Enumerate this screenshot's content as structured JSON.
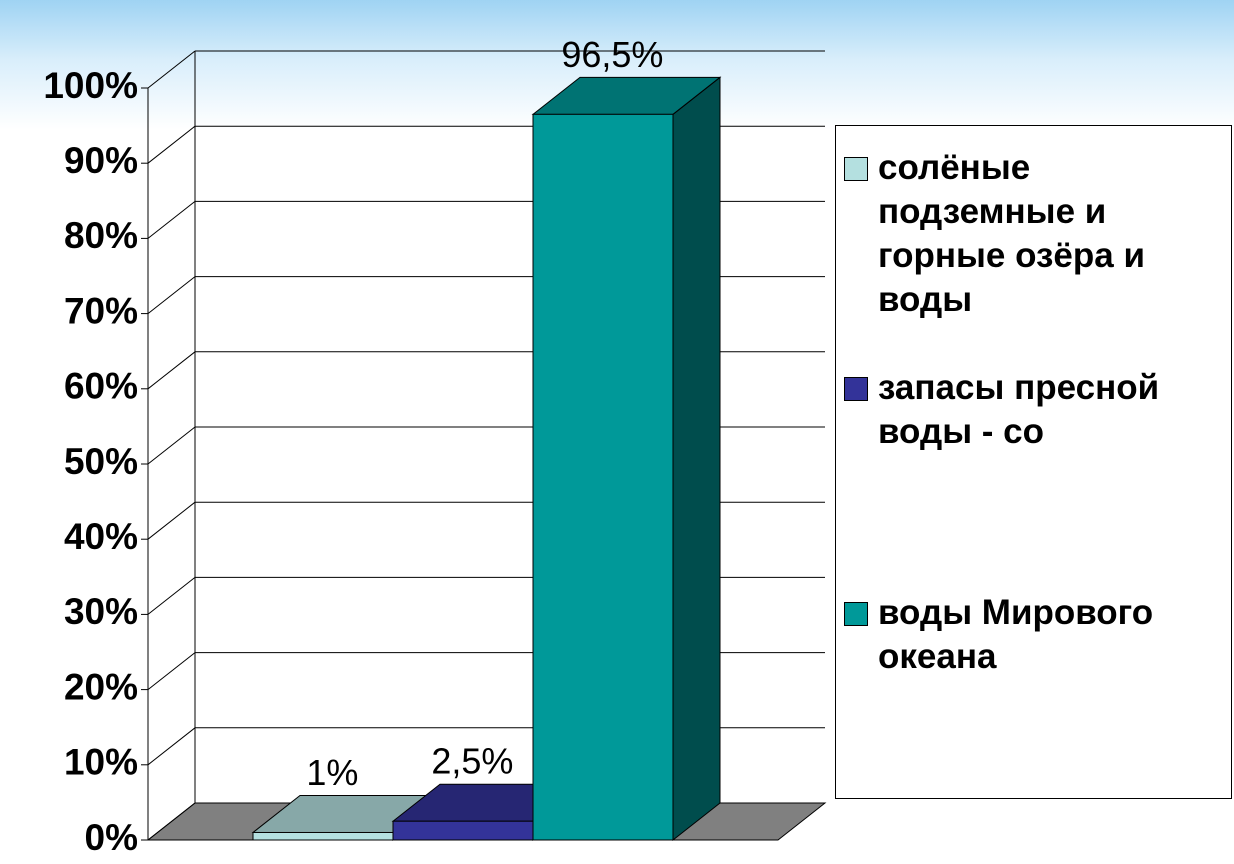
{
  "chart_data": {
    "type": "bar3d",
    "ylim": [
      0,
      100
    ],
    "yticks": [
      {
        "value": 0,
        "label": "0%"
      },
      {
        "value": 10,
        "label": "10%"
      },
      {
        "value": 20,
        "label": "20%"
      },
      {
        "value": 30,
        "label": "30%"
      },
      {
        "value": 40,
        "label": "40%"
      },
      {
        "value": 50,
        "label": "50%"
      },
      {
        "value": 60,
        "label": "60%"
      },
      {
        "value": 70,
        "label": "70%"
      },
      {
        "value": 80,
        "label": "80%"
      },
      {
        "value": 90,
        "label": "90%"
      },
      {
        "value": 100,
        "label": "100%"
      }
    ],
    "grid": true,
    "legend": "right",
    "series": [
      {
        "name": "солёные подземные и горные озёра и воды",
        "color": "#b4e0e0",
        "values": [
          1
        ],
        "value_labels": [
          "1%"
        ]
      },
      {
        "name": "запасы пресной воды - со",
        "color": "#333399",
        "values": [
          2.5
        ],
        "value_labels": [
          "2,5%"
        ]
      },
      {
        "name": "воды Мирового океана",
        "color": "#009999",
        "values": [
          96.5
        ],
        "value_labels": [
          "96,5%"
        ]
      }
    ]
  }
}
